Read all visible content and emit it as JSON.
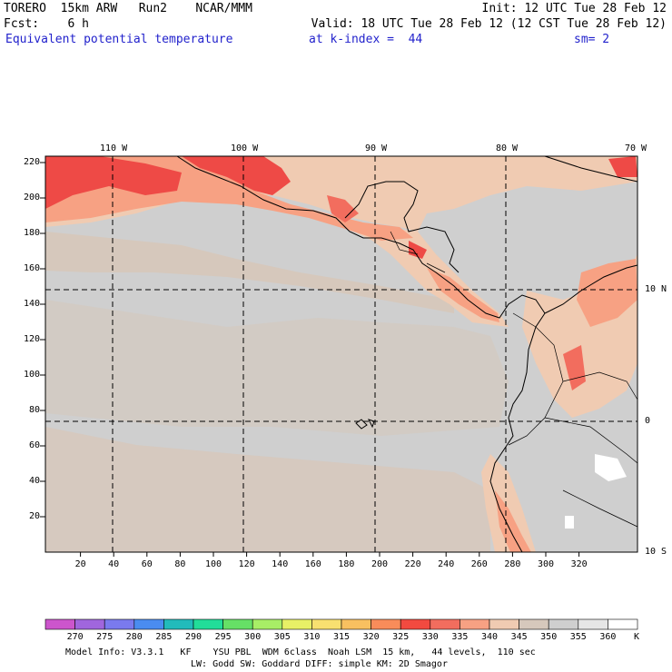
{
  "header": {
    "line1_left": "TORERO  15km ARW   Run2    NCAR/MMM",
    "line1_right": "Init: 12 UTC Tue 28 Feb 12",
    "line2_left": "Fcst:    6 h",
    "line2_right": "Valid: 18 UTC Tue 28 Feb 12 (12 CST Tue 28 Feb 12)",
    "field_name": "Equivalent potential temperature",
    "level": "at k-index =  44",
    "smoothing": "sm= 2"
  },
  "map": {
    "lon_labels": [
      "110 W",
      "100 W",
      "90 W",
      "80 W",
      "70 W"
    ],
    "lat_labels": [
      "10 N",
      "0",
      "10 S"
    ],
    "y_ticks": [
      "220",
      "200",
      "180",
      "160",
      "140",
      "120",
      "100",
      "80",
      "60",
      "40",
      "20"
    ],
    "x_ticks": [
      "20",
      "40",
      "60",
      "80",
      "100",
      "120",
      "140",
      "160",
      "180",
      "200",
      "220",
      "240",
      "260",
      "280",
      "300",
      "320"
    ],
    "colors": {
      "ocean_gray": "#cfcfcf",
      "tan_345": "#d6c8bc",
      "peach_340": "#f0cbb2",
      "salmon_335": "#f7a183",
      "coral_330": "#f26d5e",
      "red_325": "#ee4a46",
      "light_355": "#e6e6e6",
      "white_360": "#ffffff"
    }
  },
  "colorbar": {
    "unit": "K",
    "labels": [
      "270",
      "275",
      "280",
      "285",
      "290",
      "295",
      "300",
      "305",
      "310",
      "315",
      "320",
      "325",
      "330",
      "335",
      "340",
      "345",
      "350",
      "355",
      "360"
    ],
    "colors": [
      "#cc55cc",
      "#a066dd",
      "#7a7aee",
      "#4a8cf0",
      "#22bbbb",
      "#22dd99",
      "#66e066",
      "#a8ee66",
      "#e8f066",
      "#f8e070",
      "#f8c060",
      "#f88c5a",
      "#f24a40",
      "#f26d5e",
      "#f7a183",
      "#f0cbb2",
      "#d6c8bc",
      "#cfcfcf",
      "#e6e6e6",
      "#ffffff"
    ]
  },
  "footer": {
    "line1": "Model Info: V3.3.1   KF    YSU PBL  WDM 6class  Noah LSM  15 km,   44 levels,  110 sec",
    "line2": "LW: Godd SW: Goddard DIFF: simple KM: 2D Smagor"
  }
}
